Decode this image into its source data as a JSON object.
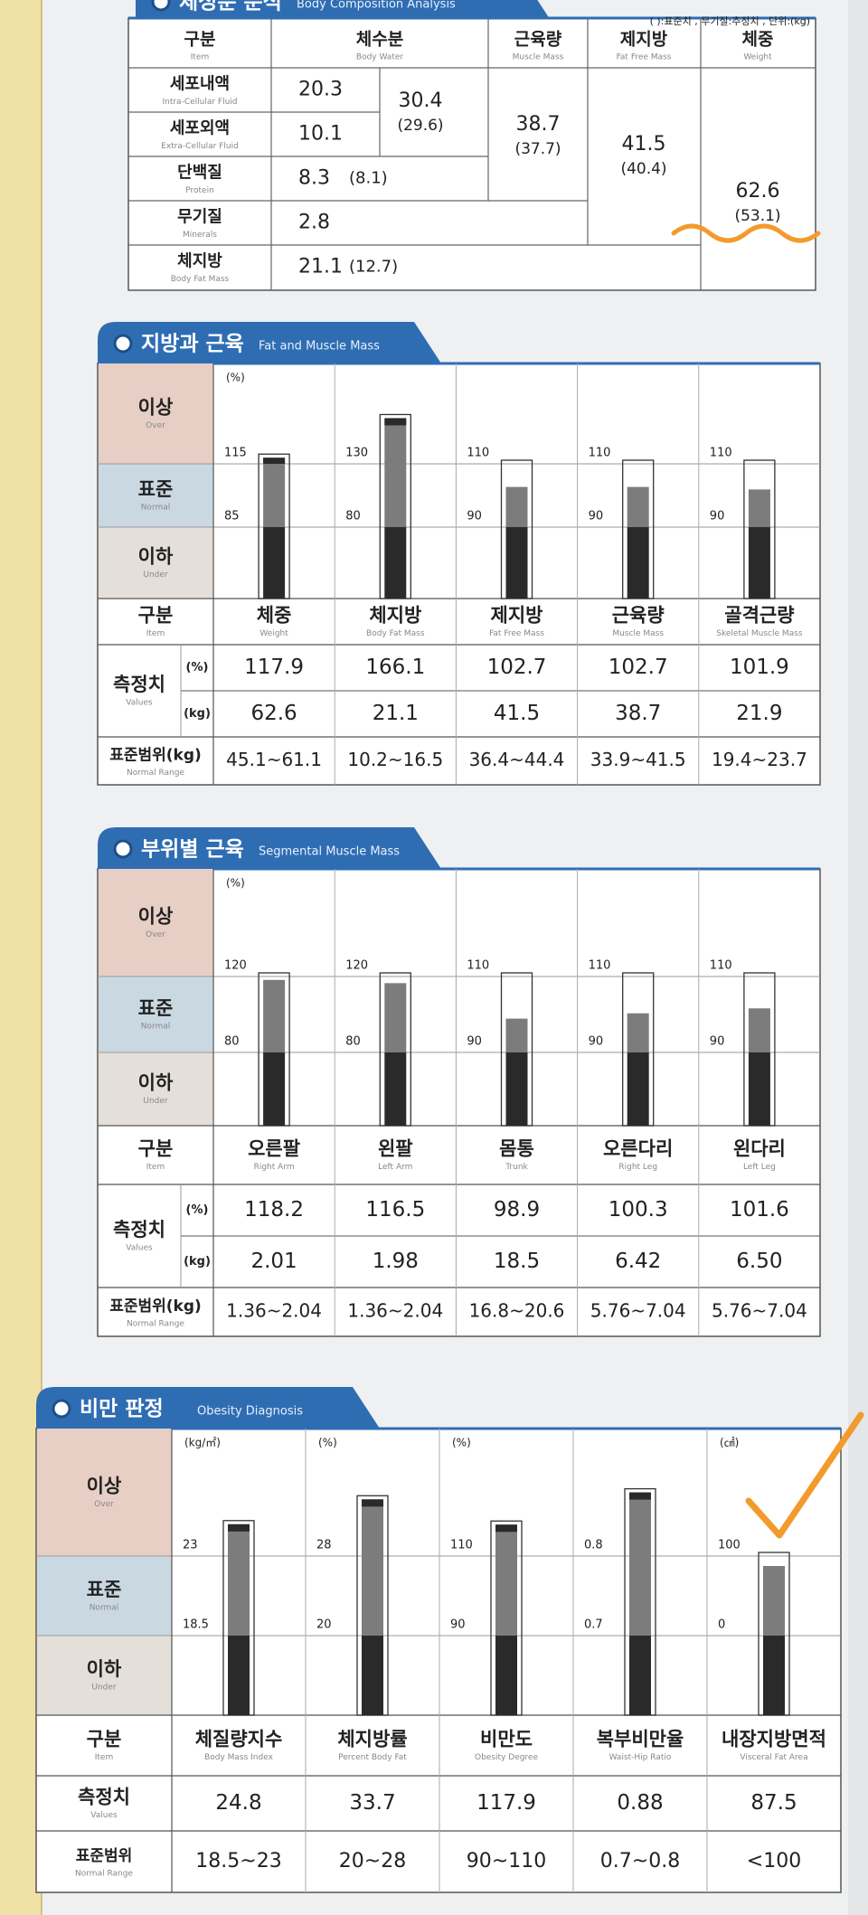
{
  "body_composition": {
    "title": "체성분 분석",
    "title_en": "Body Composition Analysis",
    "note": "( ):표준치 , 무기질:추정치 , 단위:(kg)",
    "columns": [
      {
        "ko": "구분",
        "en": "Item"
      },
      {
        "ko": "체수분",
        "en": "Body Water"
      },
      {
        "ko": "근육량",
        "en": "Muscle Mass"
      },
      {
        "ko": "제지방",
        "en": "Fat Free Mass"
      },
      {
        "ko": "체중",
        "en": "Weight"
      }
    ],
    "rows": [
      {
        "ko": "세포내액",
        "en": "Intra-Cellular Fluid",
        "value": "20.3"
      },
      {
        "ko": "세포외액",
        "en": "Extra-Cellular Fluid",
        "value": "10.1"
      },
      {
        "ko": "단백질",
        "en": "Protein",
        "value": "8.3",
        "standard": "(8.1)"
      },
      {
        "ko": "무기질",
        "en": "Minerals",
        "value": "2.8"
      },
      {
        "ko": "체지방",
        "en": "Body Fat Mass",
        "value": "21.1",
        "standard": "(12.7)"
      }
    ],
    "body_water": {
      "value": "30.4",
      "standard": "(29.6)"
    },
    "muscle_mass": {
      "value": "38.7",
      "standard": "(37.7)"
    },
    "fat_free_mass": {
      "value": "41.5",
      "standard": "(40.4)"
    },
    "weight": {
      "value": "62.6",
      "standard": "(53.1)"
    }
  },
  "fat_muscle": {
    "title": "지방과 근육",
    "title_en": "Fat and Muscle Mass",
    "unit": "(%)",
    "zones": [
      {
        "ko": "이상",
        "en": "Over"
      },
      {
        "ko": "표준",
        "en": "Normal"
      },
      {
        "ko": "이하",
        "en": "Under"
      }
    ],
    "item_label": {
      "ko": "구분",
      "en": "Item"
    },
    "values_label": {
      "ko": "측정치",
      "en": "Values"
    },
    "value_units": [
      "(%)",
      "(kg)"
    ],
    "range_label": {
      "ko": "표준범위(kg)",
      "en": "Normal Range"
    },
    "items": [
      {
        "ko": "체중",
        "en": "Weight",
        "high": 115,
        "low": 85,
        "percent": 117.9,
        "kg": "62.6",
        "range": "45.1~61.1"
      },
      {
        "ko": "체지방",
        "en": "Body Fat Mass",
        "high": 130,
        "low": 80,
        "percent": 166.1,
        "kg": "21.1",
        "range": "10.2~16.5"
      },
      {
        "ko": "제지방",
        "en": "Fat Free Mass",
        "high": 110,
        "low": 90,
        "percent": 102.7,
        "kg": "41.5",
        "range": "36.4~44.4"
      },
      {
        "ko": "근육량",
        "en": "Muscle Mass",
        "high": 110,
        "low": 90,
        "percent": 102.7,
        "kg": "38.7",
        "range": "33.9~41.5"
      },
      {
        "ko": "골격근량",
        "en": "Skeletal Muscle Mass",
        "high": 110,
        "low": 90,
        "percent": 101.9,
        "kg": "21.9",
        "range": "19.4~23.7"
      }
    ]
  },
  "segmental": {
    "title": "부위별 근육",
    "title_en": "Segmental Muscle Mass",
    "unit": "(%)",
    "zones": [
      {
        "ko": "이상",
        "en": "Over"
      },
      {
        "ko": "표준",
        "en": "Normal"
      },
      {
        "ko": "이하",
        "en": "Under"
      }
    ],
    "item_label": {
      "ko": "구분",
      "en": "Item"
    },
    "values_label": {
      "ko": "측정치",
      "en": "Values"
    },
    "value_units": [
      "(%)",
      "(kg)"
    ],
    "range_label": {
      "ko": "표준범위(kg)",
      "en": "Normal Range"
    },
    "items": [
      {
        "ko": "오른팔",
        "en": "Right Arm",
        "high": 120,
        "low": 80,
        "percent": 118.2,
        "kg": "2.01",
        "range": "1.36~2.04"
      },
      {
        "ko": "왼팔",
        "en": "Left Arm",
        "high": 120,
        "low": 80,
        "percent": 116.5,
        "kg": "1.98",
        "range": "1.36~2.04"
      },
      {
        "ko": "몸통",
        "en": "Trunk",
        "high": 110,
        "low": 90,
        "percent": 98.9,
        "kg": "18.5",
        "range": "16.8~20.6"
      },
      {
        "ko": "오른다리",
        "en": "Right Leg",
        "high": 110,
        "low": 90,
        "percent": 100.3,
        "kg": "6.42",
        "range": "5.76~7.04"
      },
      {
        "ko": "왼다리",
        "en": "Left Leg",
        "high": 110,
        "low": 90,
        "percent": 101.6,
        "kg": "6.50",
        "range": "5.76~7.04"
      }
    ]
  },
  "obesity": {
    "title": "비만 판정",
    "title_en": "Obesity Diagnosis",
    "zones": [
      {
        "ko": "이상",
        "en": "Over"
      },
      {
        "ko": "표준",
        "en": "Normal"
      },
      {
        "ko": "이하",
        "en": "Under"
      }
    ],
    "item_label": {
      "ko": "구분",
      "en": "Item"
    },
    "values_label": {
      "ko": "측정치",
      "en": "Values"
    },
    "range_label": {
      "ko": "표준범위",
      "en": "Normal Range"
    },
    "items": [
      {
        "ko": "체질량지수",
        "en": "Body Mass Index",
        "unit": "(kg/㎡)",
        "high": 23,
        "low": 18.5,
        "value": 24.8,
        "range": "18.5~23"
      },
      {
        "ko": "체지방률",
        "en": "Percent Body Fat",
        "unit": "(%)",
        "high": 28,
        "low": 20,
        "value": 33.7,
        "range": "20~28"
      },
      {
        "ko": "비만도",
        "en": "Obesity Degree",
        "unit": "(%)",
        "high": 110,
        "low": 90,
        "value": 117.9,
        "range": "90~110"
      },
      {
        "ko": "복부비만율",
        "en": "Waist-Hip Ratio",
        "high": 0.8,
        "low": 0.7,
        "value": 0.88,
        "range": "0.7~0.8"
      },
      {
        "ko": "내장지방면적",
        "en": "Visceral Fat Area",
        "unit": "(㎠)",
        "high": 100,
        "low": 0,
        "value": 87.5,
        "range": "<100"
      }
    ]
  }
}
